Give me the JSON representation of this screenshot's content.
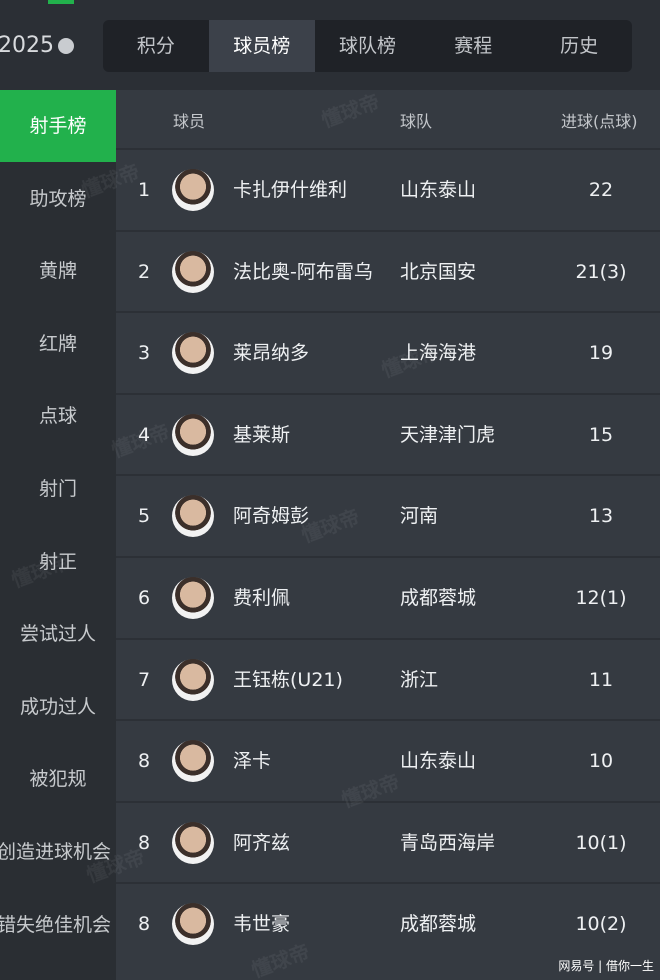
{
  "season": "2025",
  "tabs": [
    "积分",
    "球员榜",
    "球队榜",
    "赛程",
    "历史"
  ],
  "active_tab": 1,
  "sidebar": [
    "射手榜",
    "助攻榜",
    "黄牌",
    "红牌",
    "点球",
    "射门",
    "射正",
    "尝试过人",
    "成功过人",
    "被犯规",
    "创造进球机会",
    "错失绝佳机会"
  ],
  "active_sidebar": 0,
  "table": {
    "header": [
      "球员",
      "球队",
      "进球(点球)"
    ],
    "rows": [
      [
        "1",
        "卡扎伊什维利",
        "山东泰山",
        "22"
      ],
      [
        "2",
        "法比奥-阿布雷乌",
        "北京国安",
        "21(3)"
      ],
      [
        "3",
        "莱昂纳多",
        "上海海港",
        "19"
      ],
      [
        "4",
        "基莱斯",
        "天津津门虎",
        "15"
      ],
      [
        "5",
        "阿奇姆彭",
        "河南",
        "13"
      ],
      [
        "6",
        "费利佩",
        "成都蓉城",
        "12(1)"
      ],
      [
        "7",
        "王钰栋(U21)",
        "浙江",
        "11"
      ],
      [
        "8",
        "泽卡",
        "山东泰山",
        "10"
      ],
      [
        "8",
        "阿齐兹",
        "青岛西海岸",
        "10(1)"
      ],
      [
        "8",
        "韦世豪",
        "成都蓉城",
        "10(2)"
      ]
    ]
  },
  "watermark": "懂球帝",
  "footer": "网易号 | 借你一生"
}
